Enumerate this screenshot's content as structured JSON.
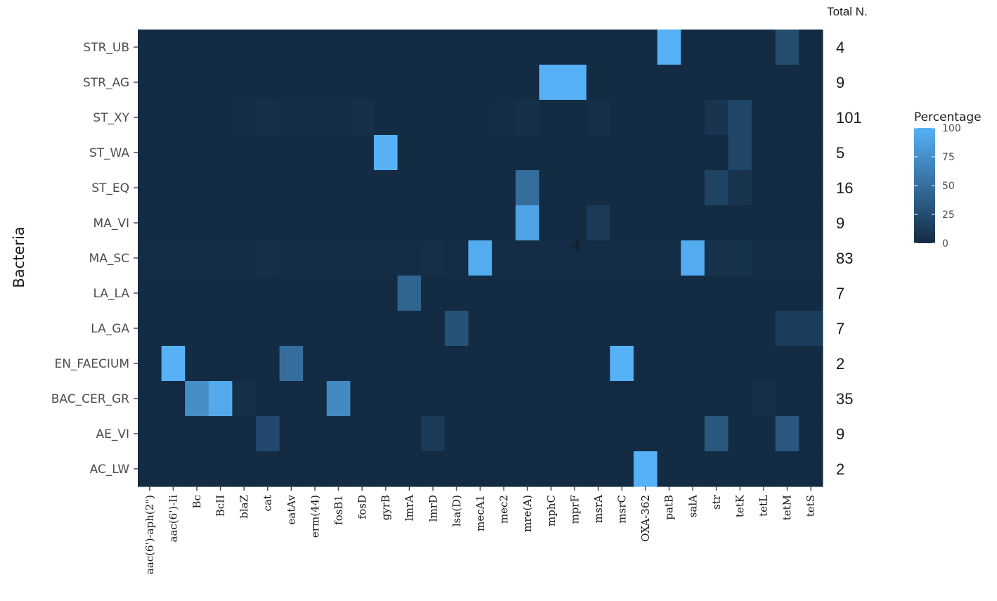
{
  "chart_data": {
    "type": "heatmap",
    "ylabel": "Bacteria",
    "total_header": "Total N.",
    "legend": {
      "title": "Percentage",
      "ticks": [
        100,
        75,
        50,
        25,
        0
      ],
      "range": [
        0,
        100
      ],
      "low_color": "#132b43",
      "high_color": "#56b1f7",
      "placement": "right"
    },
    "annotation": "4",
    "columns": [
      "aac(6')-aph(2\")",
      "aac(6')-Ii",
      "Bc",
      "BcII",
      "blaZ",
      "cat",
      "eatAv",
      "erm(44)",
      "fosB1",
      "fosD",
      "gyrB",
      "lmrA",
      "lmrD",
      "lsa(D)",
      "mecA1",
      "mec2",
      "mre(A)",
      "mphC",
      "mprF",
      "msrA",
      "msrC",
      "OXA-362",
      "patB",
      "salA",
      "str",
      "tetK",
      "tetL",
      "tetM",
      "tetS"
    ],
    "rows": [
      "STR_UB",
      "STR_AG",
      "ST_XY",
      "ST_WA",
      "ST_EQ",
      "MA_VI",
      "MA_SC",
      "LA_LA",
      "LA_GA",
      "EN_FAECIUM",
      "BAC_CER_GR",
      "AE_VI",
      "AC_LW"
    ],
    "totals": [
      "4",
      "9",
      "101",
      "5",
      "16",
      "9",
      "83",
      "7",
      "7",
      "2",
      "35",
      "9",
      "2"
    ],
    "values": [
      [
        0,
        0,
        0,
        0,
        0,
        0,
        0,
        0,
        0,
        0,
        0,
        0,
        0,
        0,
        0,
        0,
        0,
        0,
        0,
        0,
        0,
        0,
        100,
        0,
        0,
        0,
        0,
        25,
        0
      ],
      [
        0,
        0,
        0,
        0,
        0,
        0,
        0,
        0,
        0,
        0,
        0,
        0,
        0,
        0,
        0,
        0,
        0,
        100,
        100,
        0,
        0,
        0,
        0,
        0,
        0,
        0,
        0,
        0,
        0
      ],
      [
        0,
        0,
        0,
        0,
        1,
        4,
        1,
        1,
        1,
        4,
        0,
        0,
        0,
        0,
        0,
        1,
        4,
        0,
        0,
        3,
        0,
        0,
        0,
        0,
        7,
        20,
        0,
        0,
        0
      ],
      [
        0,
        0,
        0,
        0,
        0,
        0,
        0,
        0,
        0,
        0,
        100,
        0,
        0,
        0,
        0,
        0,
        0,
        0,
        0,
        0,
        0,
        0,
        0,
        0,
        0,
        20,
        0,
        0,
        0
      ],
      [
        0,
        0,
        0,
        0,
        0,
        0,
        0,
        0,
        0,
        0,
        0,
        0,
        0,
        0,
        0,
        0,
        50,
        0,
        0,
        0,
        0,
        0,
        0,
        0,
        18,
        6,
        0,
        0,
        0
      ],
      [
        0,
        0,
        0,
        0,
        0,
        0,
        0,
        0,
        0,
        0,
        0,
        0,
        0,
        0,
        0,
        0,
        89,
        0,
        0,
        11,
        0,
        0,
        0,
        0,
        0,
        0,
        0,
        0,
        0
      ],
      [
        1,
        1,
        1,
        1,
        1,
        4,
        1,
        1,
        1,
        1,
        1,
        1,
        3,
        1,
        96,
        1,
        1,
        1,
        1,
        1,
        1,
        1,
        1,
        96,
        5,
        5,
        2,
        1,
        1
      ],
      [
        0,
        0,
        0,
        0,
        0,
        0,
        0,
        0,
        0,
        0,
        0,
        43,
        0,
        0,
        0,
        0,
        0,
        0,
        0,
        0,
        0,
        0,
        0,
        0,
        0,
        0,
        0,
        0,
        0
      ],
      [
        0,
        0,
        0,
        0,
        0,
        0,
        0,
        0,
        0,
        0,
        0,
        0,
        0,
        29,
        0,
        0,
        0,
        0,
        0,
        0,
        0,
        0,
        0,
        0,
        0,
        0,
        0,
        14,
        14
      ],
      [
        0,
        100,
        0,
        0,
        0,
        0,
        50,
        0,
        0,
        0,
        0,
        0,
        0,
        0,
        0,
        0,
        0,
        0,
        0,
        0,
        100,
        0,
        0,
        0,
        0,
        0,
        0,
        0,
        0
      ],
      [
        0,
        0,
        74,
        94,
        3,
        0,
        0,
        0,
        71,
        0,
        0,
        0,
        0,
        0,
        0,
        0,
        0,
        0,
        0,
        0,
        0,
        0,
        0,
        0,
        0,
        0,
        3,
        0,
        0
      ],
      [
        0,
        0,
        0,
        0,
        0,
        22,
        0,
        0,
        0,
        0,
        0,
        0,
        11,
        0,
        0,
        0,
        0,
        0,
        0,
        0,
        0,
        0,
        0,
        0,
        33,
        0,
        0,
        33,
        0
      ],
      [
        0,
        0,
        0,
        0,
        0,
        0,
        0,
        0,
        0,
        0,
        0,
        0,
        0,
        0,
        0,
        0,
        0,
        0,
        0,
        0,
        0,
        100,
        0,
        0,
        0,
        0,
        0,
        0,
        0
      ]
    ]
  }
}
